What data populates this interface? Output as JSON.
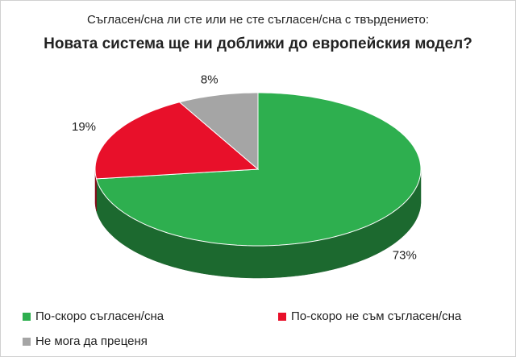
{
  "chart_data": {
    "type": "pie",
    "subtitle": "Съгласен/сна ли сте или не сте съгласен/сна с твърдението:",
    "title": "Новата система ще ни доближи до европейския модел?",
    "categories": [
      "По-скоро съгласен/сна",
      "По-скоро не съм съгласен/сна",
      "Не мога да преценя"
    ],
    "values": [
      73,
      19,
      8
    ],
    "value_labels": [
      "73%",
      "19%",
      "8%"
    ],
    "colors": [
      "#2eaf4f",
      "#e8102a",
      "#a5a5a5"
    ]
  }
}
